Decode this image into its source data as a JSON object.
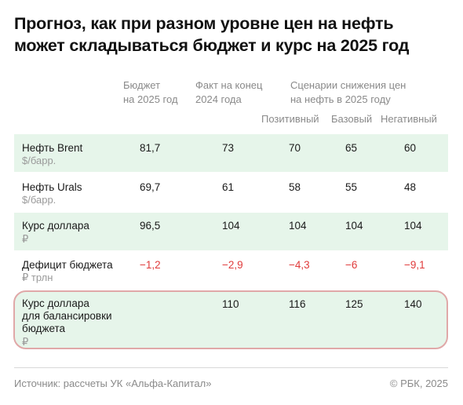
{
  "title": {
    "line1": "Прогноз, как при разном уровне цен на нефть",
    "line2": "может складываться бюджет и курс на 2025 год"
  },
  "headers": {
    "budget": [
      "Бюджет",
      "на 2025 год"
    ],
    "fact": [
      "Факт на конец",
      "2024 года"
    ],
    "scenarios": [
      "Сценарии снижения цен",
      "на нефть в 2025 году"
    ],
    "positive": "Позитивный",
    "base": "Базовый",
    "negative": "Негативный"
  },
  "rows": [
    {
      "label": "Нефть Brent",
      "unit": "$/барр.",
      "budget": "81,7",
      "fact": "73",
      "positive": "70",
      "base": "65",
      "negative": "60"
    },
    {
      "label": "Нефть Urals",
      "unit": "$/барр.",
      "budget": "69,7",
      "fact": "61",
      "positive": "58",
      "base": "55",
      "negative": "48"
    },
    {
      "label": "Курс доллара",
      "unit": "₽",
      "budget": "96,5",
      "fact": "104",
      "positive": "104",
      "base": "104",
      "negative": "104"
    },
    {
      "label": "Дефицит бюджета",
      "unit": "₽ трлн",
      "budget": "−1,2",
      "fact": "−2,9",
      "positive": "−4,3",
      "base": "−6",
      "negative": "−9,1"
    },
    {
      "label_lines": [
        "Курс доллара",
        "для балансировки",
        "бюджета"
      ],
      "unit": "₽",
      "fact": "110",
      "positive": "116",
      "base": "125",
      "negative": "140"
    }
  ],
  "footer": {
    "source": "Источник: рассчеты УК «Альфа-Капитал»",
    "copyright": "© РБК, 2025"
  },
  "colors": {
    "row_highlight": "#e6f5ea",
    "negative_value": "#e03b3b",
    "highlight_border": "#e0a8a8"
  }
}
